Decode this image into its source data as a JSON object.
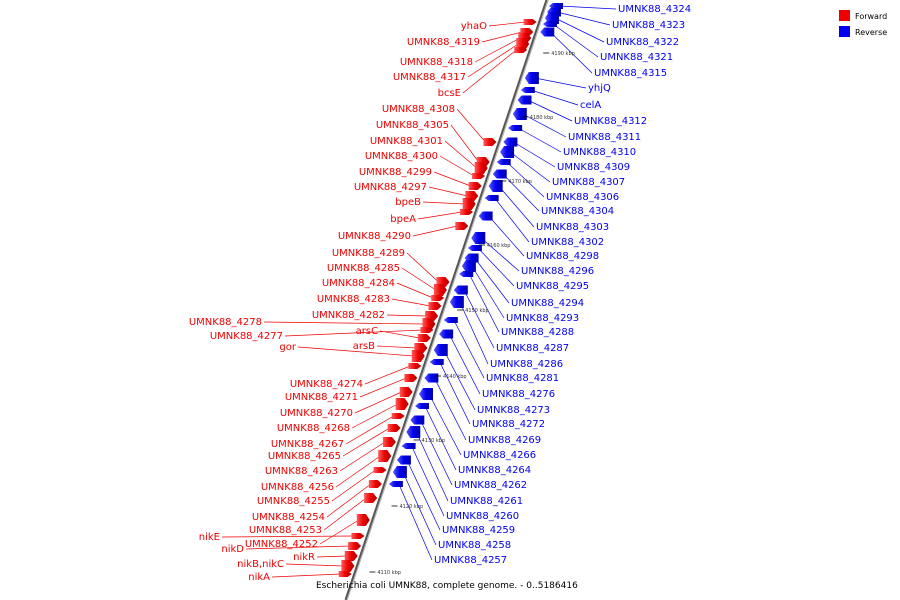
{
  "caption": "Escherichia coli UMNK88, complete genome. - 0..5186416",
  "colors": {
    "forward": "#ee0000",
    "reverse": "#0000ee",
    "backbone": "#555555"
  },
  "legend": [
    {
      "label": "Forward",
      "color": "#ee0000"
    },
    {
      "label": "Reverse",
      "color": "#0000ee"
    }
  ],
  "ticks": [
    "4110 kbp",
    "4120 kbp",
    "4130 kbp",
    "4140 kbp",
    "4150 kbp",
    "4160 kbp",
    "4170 kbp",
    "4180 kbp",
    "4190 kbp"
  ],
  "forward_genes": [
    "yhaO",
    "UMNK88_4319",
    "UMNK88_4318",
    "UMNK88_4317",
    "bcsE",
    "UMNK88_4308",
    "UMNK88_4305",
    "UMNK88_4301",
    "UMNK88_4300",
    "UMNK88_4299",
    "UMNK88_4297",
    "bpeB",
    "bpeA",
    "UMNK88_4290",
    "UMNK88_4289",
    "UMNK88_4285",
    "UMNK88_4284",
    "UMNK88_4283",
    "UMNK88_4282",
    "UMNK88_4278",
    "UMNK88_4277",
    "arsC",
    "arsB",
    "gor",
    "UMNK88_4274",
    "UMNK88_4271",
    "UMNK88_4270",
    "UMNK88_4268",
    "UMNK88_4267",
    "UMNK88_4265",
    "UMNK88_4263",
    "UMNK88_4256",
    "UMNK88_4255",
    "UMNK88_4254",
    "UMNK88_4253",
    "UMNK88_4252",
    "nikE",
    "nikD",
    "nikR",
    "nikB,nikC",
    "nikA"
  ],
  "reverse_genes": [
    "UMNK88_4324",
    "UMNK88_4323",
    "UMNK88_4322",
    "UMNK88_4321",
    "UMNK88_4315",
    "yhjQ",
    "celA",
    "UMNK88_4312",
    "UMNK88_4311",
    "UMNK88_4310",
    "UMNK88_4309",
    "UMNK88_4307",
    "UMNK88_4306",
    "UMNK88_4304",
    "UMNK88_4303",
    "UMNK88_4302",
    "UMNK88_4298",
    "UMNK88_4296",
    "UMNK88_4295",
    "UMNK88_4294",
    "UMNK88_4293",
    "UMNK88_4288",
    "UMNK88_4287",
    "UMNK88_4286",
    "UMNK88_4281",
    "UMNK88_4276",
    "UMNK88_4273",
    "UMNK88_4272",
    "UMNK88_4269",
    "UMNK88_4266",
    "UMNK88_4264",
    "UMNK88_4262",
    "UMNK88_4261",
    "UMNK88_4260",
    "UMNK88_4259",
    "UMNK88_4258",
    "UMNK88_4257"
  ]
}
